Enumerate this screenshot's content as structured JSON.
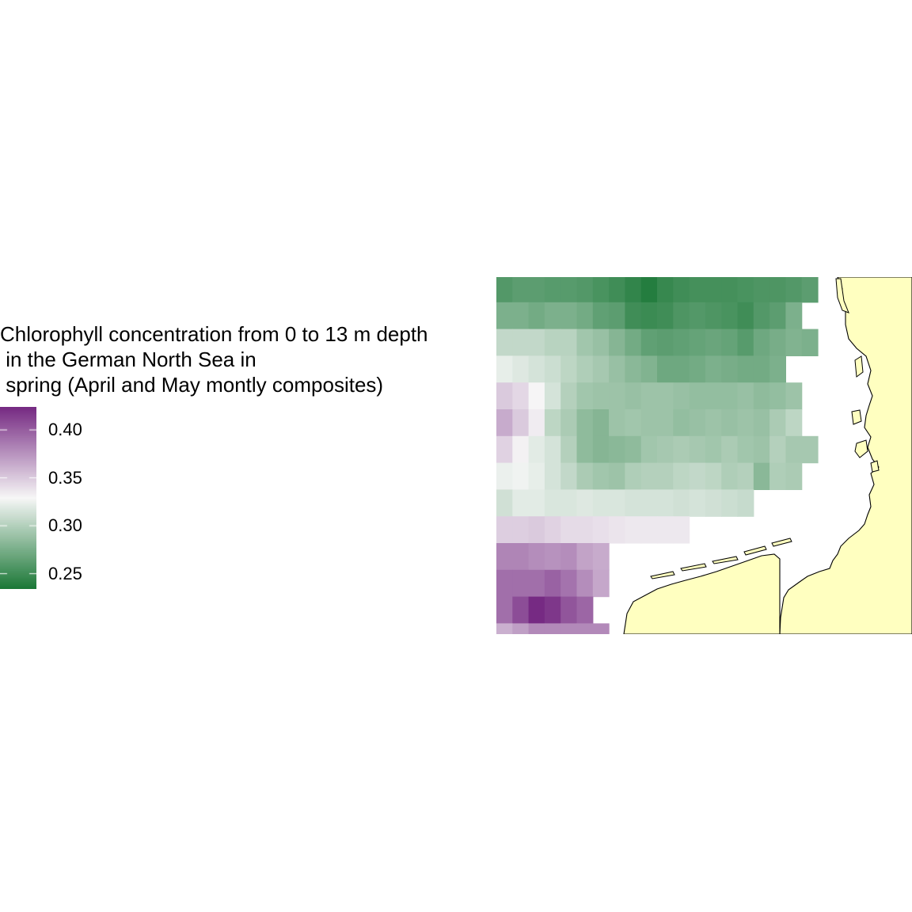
{
  "legend": {
    "title": "Chlorophyll concentration from 0 to 13 m depth\n in the German North Sea in\n spring (April and May montly composites)",
    "ticks": [
      {
        "value": 0.4,
        "label": "0.40"
      },
      {
        "value": 0.35,
        "label": "0.35"
      },
      {
        "value": 0.3,
        "label": "0.30"
      },
      {
        "value": 0.25,
        "label": "0.25"
      }
    ],
    "range": [
      0.234,
      0.424
    ],
    "colors": {
      "low": "#1b7837",
      "mid": "#f7f7f7",
      "high": "#762a83"
    }
  },
  "map": {
    "land_color": "#ffffc0",
    "coast_color": "#000000",
    "grid": [
      [
        0.258,
        0.262,
        0.262,
        0.26,
        0.26,
        0.258,
        0.254,
        0.25,
        0.244,
        0.238,
        0.246,
        0.25,
        0.252,
        0.252,
        0.252,
        0.254,
        0.256,
        0.256,
        0.258,
        0.262
      ],
      [
        0.276,
        0.276,
        0.272,
        0.276,
        0.276,
        0.272,
        0.264,
        0.262,
        0.25,
        0.248,
        0.25,
        0.256,
        0.258,
        0.256,
        0.254,
        0.25,
        0.258,
        0.262,
        0.276,
        null
      ],
      [
        0.306,
        0.306,
        0.306,
        0.302,
        0.302,
        0.292,
        0.288,
        0.28,
        0.272,
        0.264,
        0.262,
        0.264,
        0.266,
        0.268,
        0.266,
        0.26,
        0.27,
        0.274,
        0.278,
        0.276
      ],
      [
        0.322,
        0.318,
        0.314,
        0.31,
        0.304,
        0.298,
        0.294,
        0.288,
        0.282,
        0.278,
        0.27,
        0.27,
        0.272,
        0.276,
        0.274,
        0.272,
        0.272,
        0.276,
        null,
        null
      ],
      [
        0.35,
        0.344,
        0.33,
        0.314,
        0.3,
        0.292,
        0.29,
        0.29,
        0.288,
        0.29,
        0.29,
        0.288,
        0.286,
        0.286,
        0.286,
        0.288,
        0.284,
        0.286,
        0.29,
        null
      ],
      [
        0.364,
        0.35,
        0.334,
        0.304,
        0.296,
        0.284,
        0.28,
        0.29,
        0.292,
        0.29,
        0.29,
        0.286,
        0.288,
        0.29,
        0.288,
        0.29,
        0.288,
        0.296,
        0.304,
        null
      ],
      [
        0.346,
        0.332,
        0.32,
        0.314,
        0.3,
        0.284,
        0.28,
        0.282,
        0.284,
        0.292,
        0.294,
        0.296,
        0.294,
        0.292,
        0.296,
        0.292,
        0.29,
        0.3,
        0.294,
        0.294
      ],
      [
        0.324,
        0.326,
        0.322,
        0.314,
        0.306,
        0.296,
        0.292,
        0.29,
        0.298,
        0.3,
        0.3,
        0.304,
        0.306,
        0.304,
        0.298,
        0.3,
        0.282,
        0.298,
        0.296,
        null
      ],
      [
        0.312,
        0.32,
        0.32,
        0.316,
        0.316,
        0.318,
        0.316,
        0.316,
        0.314,
        0.314,
        0.314,
        0.312,
        0.314,
        0.312,
        0.31,
        0.308,
        null,
        null,
        null,
        null
      ],
      [
        0.348,
        0.348,
        0.35,
        0.346,
        0.342,
        0.342,
        0.34,
        0.338,
        0.336,
        0.336,
        0.336,
        0.336,
        null,
        null,
        null,
        null,
        null,
        null,
        null,
        null
      ],
      [
        0.382,
        0.382,
        0.378,
        0.376,
        0.378,
        0.368,
        0.364,
        null,
        null,
        null,
        null,
        null,
        null,
        null,
        null,
        null,
        null,
        null,
        null,
        null
      ],
      [
        0.392,
        0.392,
        0.392,
        0.398,
        0.39,
        0.378,
        0.366,
        null,
        null,
        null,
        null,
        null,
        null,
        null,
        null,
        null,
        null,
        null,
        null,
        null
      ],
      [
        0.392,
        0.408,
        0.424,
        0.418,
        0.404,
        0.396,
        null,
        null,
        null,
        null,
        null,
        null,
        null,
        null,
        null,
        null,
        null,
        null,
        null,
        null
      ],
      [
        0.362,
        0.37,
        0.38,
        0.38,
        0.38,
        0.38,
        0.38,
        null,
        null,
        null,
        null,
        null,
        null,
        null,
        null,
        null,
        null,
        null,
        null,
        null
      ]
    ]
  }
}
